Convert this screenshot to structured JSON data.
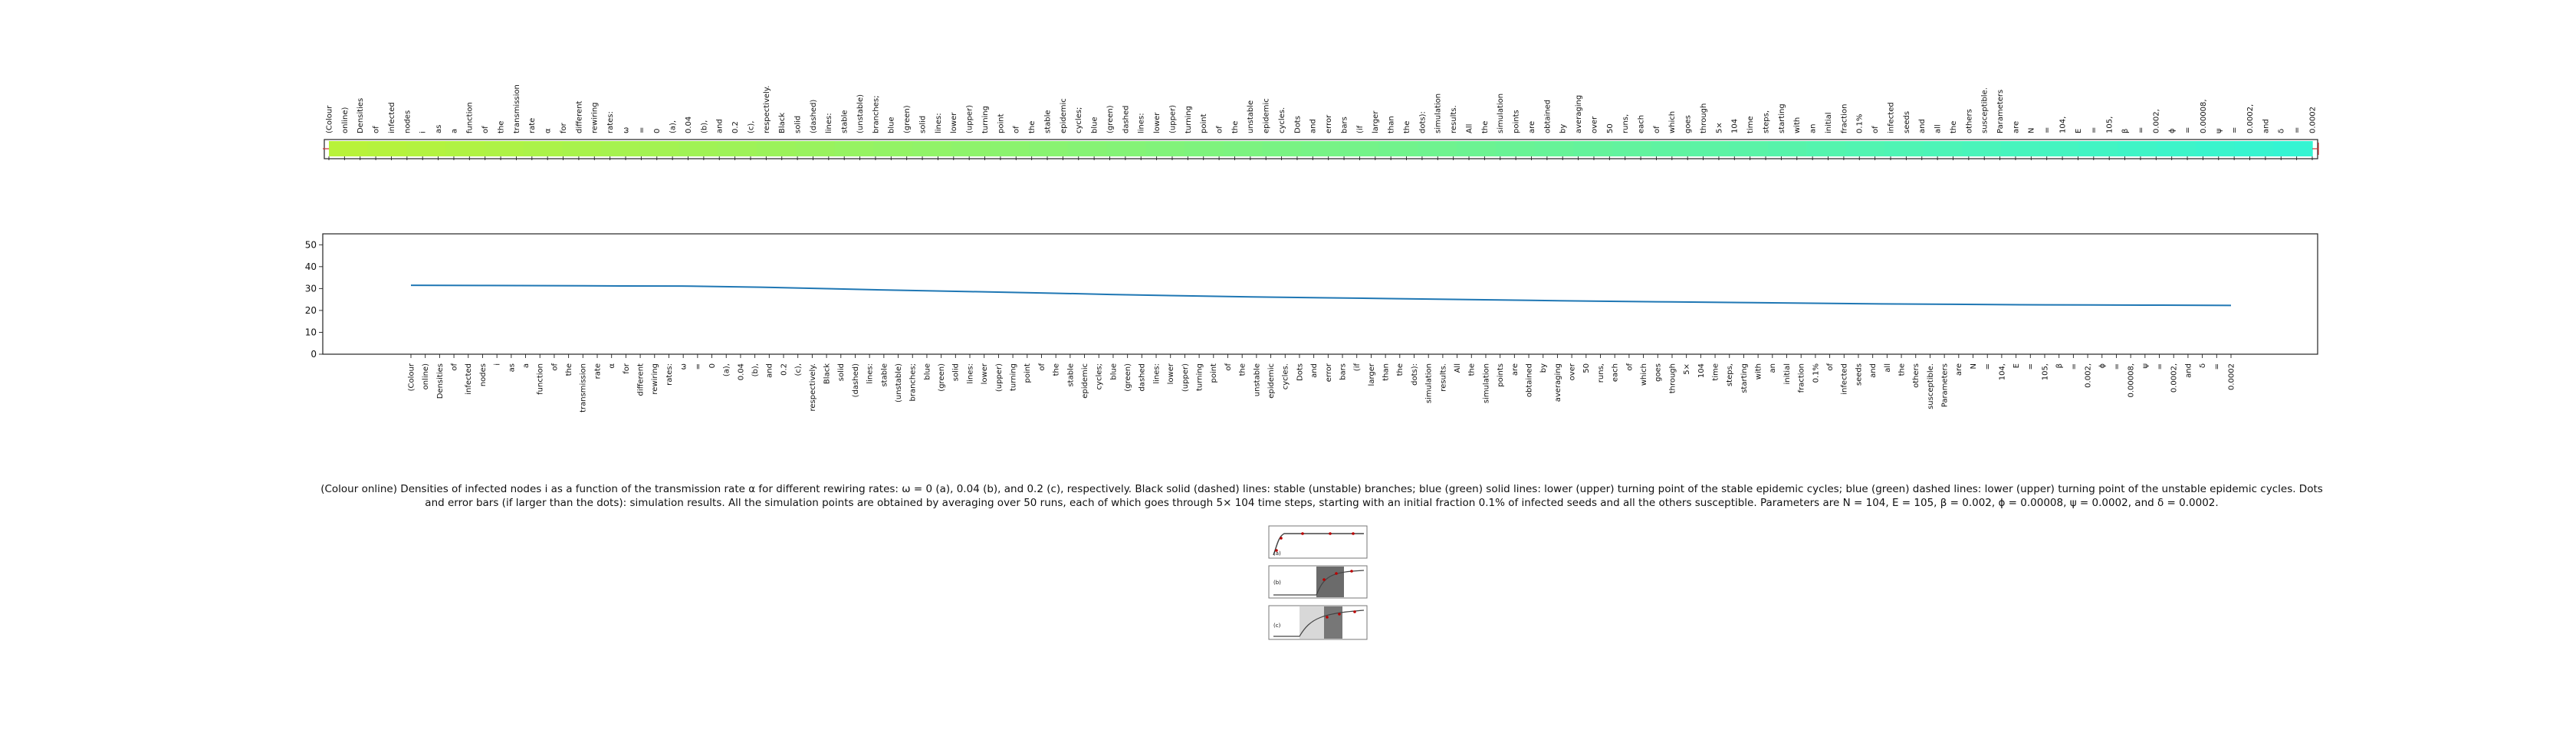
{
  "caption": "(Colour online) Densities of infected nodes i as a function of the transmission rate α for different rewiring rates: ω = 0 (a), 0.04 (b), and 0.2 (c), respectively. Black solid (dashed) lines: stable (unstable) branches; blue (green) solid lines: lower (upper) turning point of the stable epidemic cycles; blue (green) dashed lines: lower (upper) turning point of the unstable epidemic cycles. Dots and error bars (if larger than the dots): simulation results. All the simulation points are obtained by averaging over 50 runs, each of which goes through 5× 104 time steps, starting with an initial fraction 0.1% of infected seeds and all the others susceptible. Parameters are N = 104, E = 105, β = 0.002, ϕ = 0.00008, ψ = 0.0002, and δ = 0.0002.",
  "thumbnail": {
    "panel_labels": [
      "(a)",
      "(b)",
      "(c)"
    ]
  },
  "chart_data": [
    {
      "type": "heatmap",
      "title": "",
      "words": [
        "(Colour",
        "online)",
        "Densities",
        "of",
        "infected",
        "nodes",
        "i",
        "as",
        "a",
        "function",
        "of",
        "the",
        "transmission",
        "rate",
        "α",
        "for",
        "different",
        "rewiring",
        "rates:",
        "ω",
        "=",
        "0",
        "(a),",
        "0.04",
        "(b),",
        "and",
        "0.2",
        "(c),",
        "respectively.",
        "Black",
        "solid",
        "(dashed)",
        "lines:",
        "stable",
        "(unstable)",
        "branches;",
        "blue",
        "(green)",
        "solid",
        "lines:",
        "lower",
        "(upper)",
        "turning",
        "point",
        "of",
        "the",
        "stable",
        "epidemic",
        "cycles;",
        "blue",
        "(green)",
        "dashed",
        "lines:",
        "lower",
        "(upper)",
        "turning",
        "point",
        "of",
        "the",
        "unstable",
        "epidemic",
        "cycles.",
        "Dots",
        "and",
        "error",
        "bars",
        "(if",
        "larger",
        "than",
        "the",
        "dots):",
        "simulation",
        "results.",
        "All",
        "the",
        "simulation",
        "points",
        "are",
        "obtained",
        "by",
        "averaging",
        "over",
        "50",
        "runs,",
        "each",
        "of",
        "which",
        "goes",
        "through",
        "5×",
        "104",
        "time",
        "steps,",
        "starting",
        "with",
        "an",
        "initial",
        "fraction",
        "0.1%",
        "of",
        "infected",
        "seeds",
        "and",
        "all",
        "the",
        "others",
        "susceptible.",
        "Parameters",
        "are",
        "N",
        "=",
        "104,",
        "E",
        "=",
        "105,",
        "β",
        "=",
        "0.002,",
        "ϕ",
        "=",
        "0.00008,",
        "ψ",
        "=",
        "0.0002,",
        "and",
        "δ",
        "=",
        "0.0002"
      ],
      "values": [
        1.0,
        0.98,
        0.96,
        0.94,
        0.92,
        0.9,
        0.88,
        0.86,
        0.84,
        0.82,
        0.8,
        0.78,
        0.76,
        0.74,
        0.72,
        0.7,
        0.68,
        0.66,
        0.64,
        0.62,
        0.6,
        0.58,
        0.56,
        0.54,
        0.52,
        0.5,
        0.48,
        0.46,
        0.44,
        0.42,
        0.4,
        0.38,
        0.36,
        0.34,
        0.32,
        0.3,
        0.28,
        0.26,
        0.24,
        0.22,
        0.2,
        0.18,
        0.16,
        0.14,
        0.12,
        0.1,
        0.08,
        0.06,
        0.04,
        0.02,
        0.0
      ],
      "colors": {
        "start": "#b8f23a",
        "end": "#35f4d2",
        "edge": "#cc3333",
        "axis": "#222222"
      }
    },
    {
      "type": "line",
      "title": "",
      "xlabel": "",
      "ylabel": "",
      "ylim": [
        0,
        55
      ],
      "yticks": [
        0,
        10,
        20,
        30,
        40,
        50
      ],
      "x_tick_labels": [
        "(Colour",
        "online)",
        "Densities",
        "of",
        "infected",
        "nodes",
        "i",
        "as",
        "a",
        "function",
        "of",
        "the",
        "transmission",
        "rate",
        "α",
        "for",
        "different",
        "rewiring",
        "rates:",
        "ω",
        "=",
        "0",
        "(a),",
        "0.04",
        "(b),",
        "and",
        "0.2",
        "(c),",
        "respectively.",
        "Black",
        "solid",
        "(dashed)",
        "lines:",
        "stable",
        "(unstable)",
        "branches;",
        "blue",
        "(green)",
        "solid",
        "lines:",
        "lower",
        "(upper)",
        "turning",
        "point",
        "of",
        "the",
        "stable",
        "epidemic",
        "cycles;",
        "blue",
        "(green)",
        "dashed",
        "lines:",
        "lower",
        "(upper)",
        "turning",
        "point",
        "of",
        "the",
        "unstable",
        "epidemic",
        "cycles.",
        "Dots",
        "and",
        "error",
        "bars",
        "(if",
        "larger",
        "than",
        "the",
        "dots):",
        "simulation",
        "results.",
        "All",
        "the",
        "simulation",
        "points",
        "are",
        "obtained",
        "by",
        "averaging",
        "over",
        "50",
        "runs,",
        "each",
        "of",
        "which",
        "goes",
        "through",
        "5×",
        "104",
        "time",
        "steps,",
        "starting",
        "with",
        "an",
        "initial",
        "fraction",
        "0.1%",
        "of",
        "infected",
        "seeds",
        "and",
        "all",
        "the",
        "others",
        "susceptible.",
        "Parameters",
        "are",
        "N",
        "=",
        "104,",
        "E",
        "=",
        "105,",
        "β",
        "=",
        "0.002,",
        "ϕ",
        "=",
        "0.00008,",
        "ψ",
        "=",
        "0.0002,",
        "and",
        "δ",
        "=",
        "0.0002"
      ],
      "series": [
        {
          "name": "series",
          "color": "#1f77b4",
          "x": [
            0,
            5,
            10,
            15,
            20,
            25,
            30,
            35,
            40,
            45,
            50,
            55,
            60,
            65,
            70,
            75,
            80,
            85,
            90,
            95,
            100,
            105,
            110,
            115,
            120,
            125,
            130
          ],
          "values": [
            31.5,
            31.4,
            31.3,
            31.2,
            31.1,
            30.6,
            29.9,
            29.2,
            28.6,
            28.0,
            27.3,
            26.7,
            26.2,
            25.8,
            25.4,
            25.0,
            24.6,
            24.2,
            23.9,
            23.6,
            23.3,
            23.0,
            22.8,
            22.6,
            22.5,
            22.4,
            22.3
          ]
        }
      ]
    }
  ]
}
